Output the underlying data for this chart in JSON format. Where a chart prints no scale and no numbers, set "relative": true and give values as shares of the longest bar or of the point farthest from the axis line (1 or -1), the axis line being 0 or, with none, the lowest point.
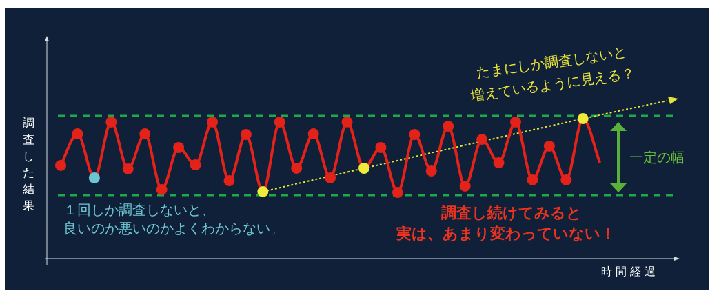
{
  "chart_data": {
    "type": "line",
    "ylabel": "調査した結果",
    "xlabel": "時間経過",
    "relative": true,
    "marker": "circle",
    "line_style": "solid",
    "categories": [
      null,
      null,
      null,
      null,
      null,
      null,
      null,
      null,
      null,
      null,
      null,
      null,
      null,
      null,
      null,
      null,
      null,
      null,
      null,
      null,
      null,
      null,
      null,
      null,
      null,
      null,
      null,
      null,
      null,
      null,
      null,
      null,
      null,
      null,
      null,
      null,
      null
    ],
    "series": [
      {
        "color": "#e32219",
        "colors": [
          "#e32219",
          "#e32219",
          "#6cc5d3",
          "#e32219",
          "#e32219",
          "#e32219",
          "#e32219",
          "#e32219",
          "#e32219",
          "#e32219",
          "#e32219",
          "#e32219",
          "#f0ea3a",
          "#e32219",
          "#e32219",
          "#e32219",
          "#e32219",
          "#e32219",
          "#f0ea3a",
          "#e32219",
          "#e32219",
          "#e32219",
          "#e32219",
          "#e32219",
          "#e32219",
          "#e32219",
          "#e32219",
          "#e32219",
          "#e32219",
          "#e32219",
          "#e32219",
          "#f0ea3a",
          null,
          null,
          null,
          null,
          null
        ],
        "values": [
          0.59,
          0.79,
          0.511,
          0.865,
          0.568,
          0.79,
          0.437,
          0.703,
          0.594,
          0.865,
          0.493,
          0.786,
          0.424,
          0.865,
          0.572,
          0.79,
          0.511,
          0.865,
          0.572,
          0.703,
          0.419,
          0.786,
          0.555,
          0.838,
          0.459,
          0.755,
          0.607,
          0.865,
          0.498,
          0.712,
          0.498,
          0.886,
          0.607,
          null,
          null,
          null,
          null
        ]
      },
      {
        "type": "line",
        "color": "#e8e23a",
        "line_style": "dotted",
        "marker": "none",
        "values": [
          null,
          null,
          null,
          null,
          null,
          null,
          null,
          null,
          null,
          null,
          null,
          null,
          0.424,
          null,
          null,
          null,
          null,
          null,
          0.572,
          null,
          null,
          null,
          null,
          null,
          null,
          null,
          null,
          null,
          null,
          null,
          null,
          0.886,
          null,
          null,
          null,
          null,
          1
        ]
      }
    ],
    "ref_lines": [
      {
        "axis": "y",
        "value": 0.904,
        "color": "#1fa84a",
        "line_style": "dashed"
      },
      {
        "axis": "y",
        "value": 0.402,
        "color": "#1fa84a",
        "line_style": "dashed"
      }
    ],
    "annotations": [
      "たまにしか調査しないと",
      "増えているように見える？",
      "一定の幅",
      "１回しか調査しないと、",
      "良いのか悪いのかよくわからない。",
      "調査し続けてみると",
      "実は、あまり変わっていない！"
    ]
  }
}
